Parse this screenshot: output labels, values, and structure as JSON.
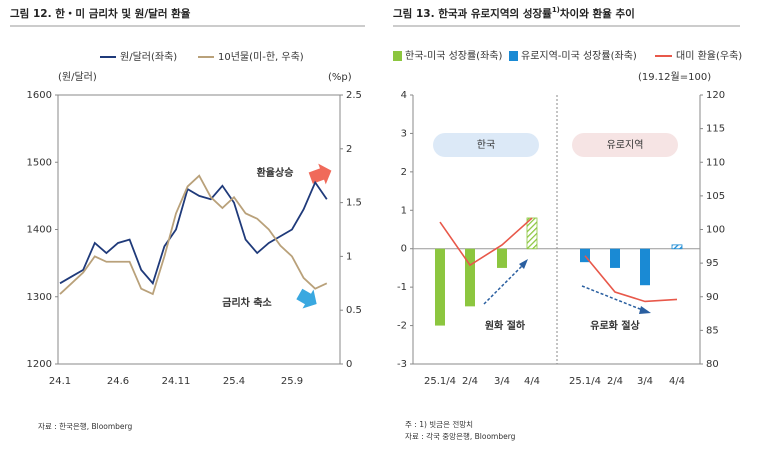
{
  "chart_data": [
    {
      "type": "line",
      "title": "그림 12. 한・미 금리차 및 원/달러 환율",
      "y_unit_label": "(원/달러)",
      "y2_unit_label": "(%p)",
      "categories": [
        "24.1",
        null,
        null,
        null,
        null,
        "24.6",
        null,
        null,
        null,
        null,
        "24.11",
        null,
        null,
        null,
        null,
        "25.4",
        null,
        null,
        null,
        null,
        "25.9",
        null,
        null,
        null
      ],
      "series": [
        {
          "name": "원/달러(좌축)",
          "color": "#1f3a7a",
          "values": [
            1320,
            1330,
            1340,
            1380,
            1365,
            1380,
            1385,
            1340,
            1320,
            1375,
            1400,
            1460,
            1450,
            1445,
            1465,
            1440,
            1385,
            1365,
            1380,
            1390,
            1400,
            1430,
            1470,
            1445
          ]
        },
        {
          "name": "10년물(미-한, 우축)",
          "color": "#b9a17a",
          "axis": "y2",
          "values": [
            0.65,
            0.75,
            0.85,
            1.0,
            0.95,
            0.95,
            0.95,
            0.7,
            0.65,
            1.0,
            1.4,
            1.65,
            1.75,
            1.55,
            1.45,
            1.55,
            1.4,
            1.35,
            1.25,
            1.1,
            1.0,
            0.8,
            0.7,
            0.75
          ]
        }
      ],
      "ylim": [
        1200,
        1600
      ],
      "yticks": [
        1200,
        1300,
        1400,
        1500,
        1600
      ],
      "y2lim": [
        0,
        2.5
      ],
      "y2ticks": [
        0,
        0.5,
        1,
        1.5,
        2,
        2.5
      ],
      "annotations": [
        {
          "text": "환율상승",
          "color": "#e8584a"
        },
        {
          "text": "금리차 축소",
          "color": "#2a9fd6"
        }
      ],
      "source": "자료 : 한국은행, Bloomberg"
    },
    {
      "type": "combo",
      "title_parts": [
        "그림 13. 한국과 유로지역의 성장률",
        "1)",
        "차이와 환율 추이"
      ],
      "y2_unit_label": "(19.12월=100)",
      "categories": [
        "25.1/4",
        "2/4",
        "3/4",
        "4/4",
        "25.1/4",
        "2/4",
        "3/4",
        "4/4"
      ],
      "series": [
        {
          "name": "한국-미국 성장률(좌축)",
          "type": "bar",
          "color": "#8cc63f",
          "values": [
            -2.0,
            -1.5,
            -0.5,
            0.8,
            null,
            null,
            null,
            null
          ],
          "forecast": [
            false,
            false,
            false,
            true,
            false,
            false,
            false,
            false
          ]
        },
        {
          "name": "유로지역-미국 성장률(좌축)",
          "type": "bar",
          "color": "#1a8ad4",
          "values": [
            null,
            null,
            null,
            null,
            -0.35,
            -0.5,
            -0.95,
            0.1
          ],
          "forecast": [
            false,
            false,
            false,
            false,
            false,
            false,
            false,
            true
          ]
        },
        {
          "name": "대미 환율(우축)",
          "type": "line",
          "color": "#e8584a",
          "axis": "y2",
          "values": [
            101.1,
            94.7,
            97.7,
            101.7,
            96.1,
            90.7,
            89.3,
            89.6
          ]
        }
      ],
      "ylim": [
        -3,
        4
      ],
      "yticks": [
        -3,
        -2,
        -1,
        0,
        1,
        2,
        3,
        4
      ],
      "y2lim": [
        80,
        120
      ],
      "y2ticks": [
        80,
        85,
        90,
        95,
        100,
        105,
        110,
        115,
        120
      ],
      "annotations": [
        "한국",
        "유로지역",
        "원화 절하",
        "유로화 절상"
      ],
      "notes": [
        "주 : 1) 빗금은 전망치",
        "자료 : 각국 중앙은행, Bloomberg"
      ]
    }
  ]
}
